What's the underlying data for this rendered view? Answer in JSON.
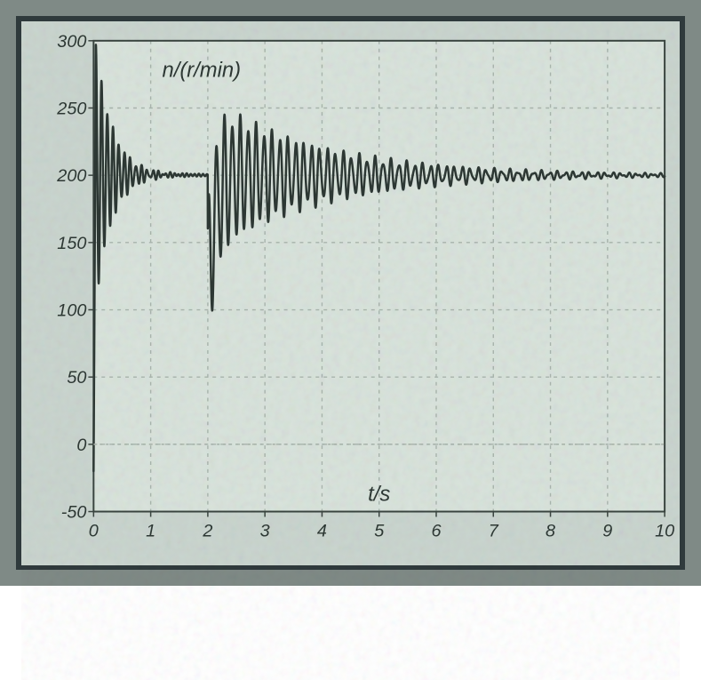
{
  "chart": {
    "type": "line",
    "ylabel": "n/(r/min)",
    "xlabel": "t/s",
    "xlabel_fontsize": 24,
    "ylabel_fontsize": 24,
    "tick_fontsize": 20,
    "xlim": [
      0,
      10
    ],
    "ylim": [
      -50,
      300
    ],
    "xtick_step": 1,
    "ytick_step": 50,
    "background_color": "#7f8a86",
    "panel_color": "#c8d4ce",
    "plot_bg_color": "#d9e3dc",
    "grid_color": "#a9b5ad",
    "grid_dash": "4,5",
    "axis_color": "#3a4540",
    "trace_color": "#2d3834",
    "trace_width": 2.5,
    "label_color": "#2d3834",
    "xticks": [
      0,
      1,
      2,
      3,
      4,
      5,
      6,
      7,
      8,
      9,
      10
    ],
    "yticks": [
      -50,
      0,
      50,
      100,
      150,
      200,
      250,
      300
    ]
  }
}
